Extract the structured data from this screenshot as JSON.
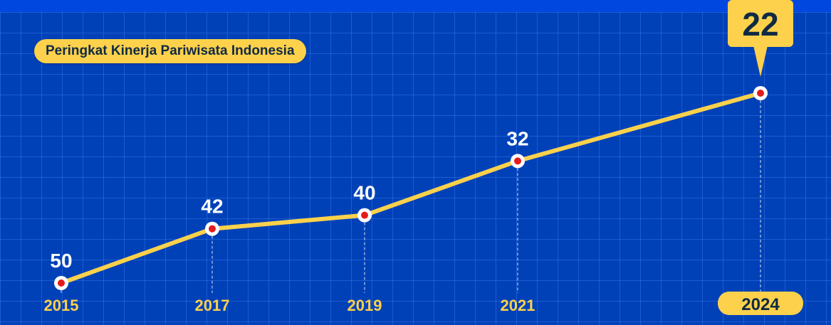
{
  "chart_data": {
    "type": "line",
    "title": "Peringkat Kinerja Pariwisata Indonesia",
    "x": [
      "2015",
      "2017",
      "2019",
      "2021",
      "2024"
    ],
    "values": [
      50,
      42,
      40,
      32,
      22
    ],
    "highlight": {
      "year": "2024",
      "value": 22
    },
    "xlabel": "",
    "ylabel": "",
    "grid": true
  },
  "colors": {
    "background": "#0041b8",
    "line": "#fdd14b",
    "marker": "#e41b1b",
    "label": "#ffffff",
    "year": "#fdd14b"
  }
}
